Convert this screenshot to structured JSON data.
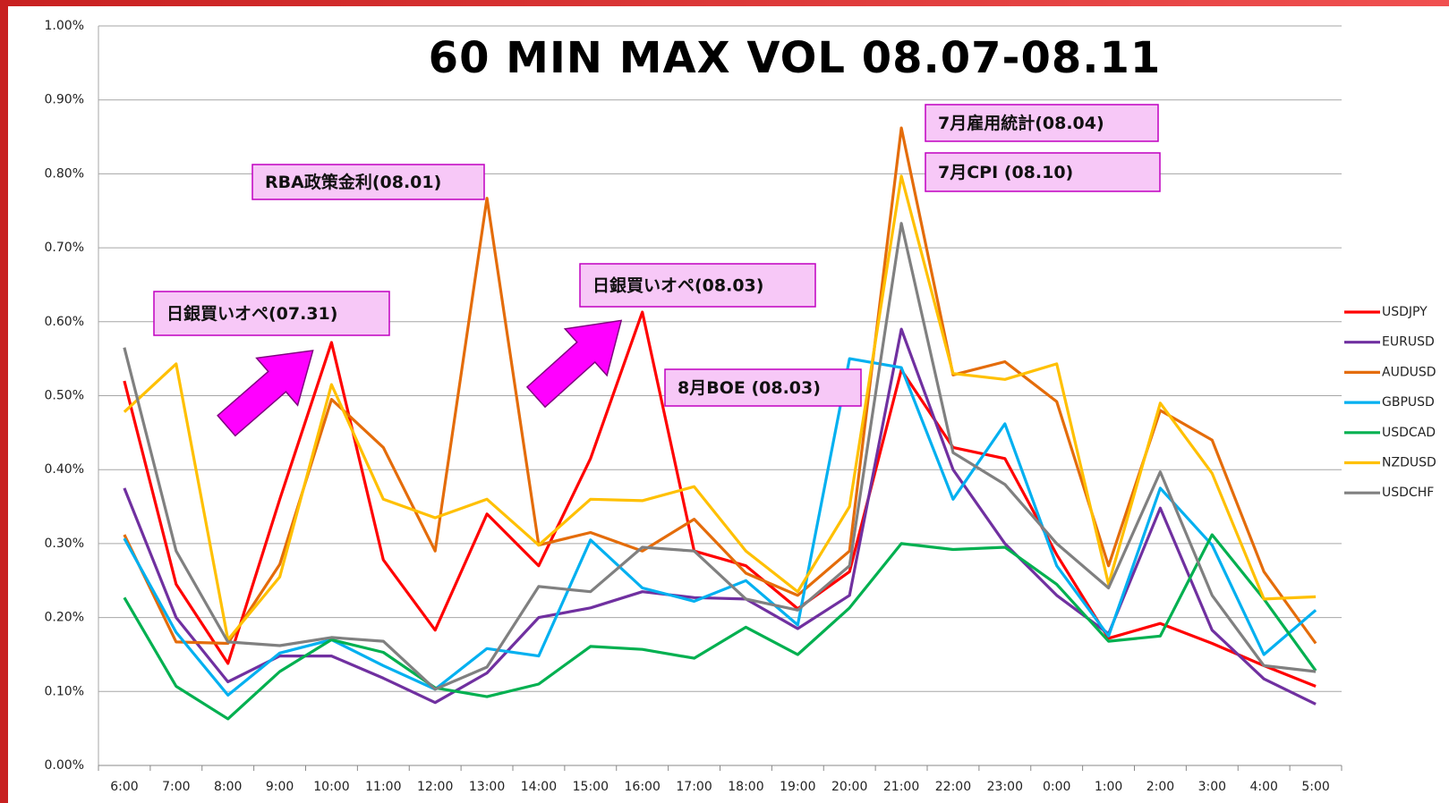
{
  "chart_data": {
    "type": "line",
    "title": "60 MIN MAX VOL 08.07-08.11",
    "categories": [
      "6:00",
      "7:00",
      "8:00",
      "9:00",
      "10:00",
      "11:00",
      "12:00",
      "13:00",
      "14:00",
      "15:00",
      "16:00",
      "17:00",
      "18:00",
      "19:00",
      "20:00",
      "21:00",
      "22:00",
      "23:00",
      "0:00",
      "1:00",
      "2:00",
      "3:00",
      "4:00",
      "5:00"
    ],
    "series": [
      {
        "name": "USDJPY",
        "color": "#ff0000",
        "values": [
          0.52,
          0.245,
          0.138,
          0.36,
          0.572,
          0.278,
          0.183,
          0.34,
          0.27,
          0.415,
          0.613,
          0.29,
          0.27,
          0.212,
          0.262,
          0.535,
          0.43,
          0.415,
          0.285,
          0.172,
          0.192,
          0.165,
          0.135,
          0.107
        ]
      },
      {
        "name": "EURUSD",
        "color": "#7030a0",
        "values": [
          0.375,
          0.2,
          0.113,
          0.148,
          0.148,
          0.118,
          0.085,
          0.125,
          0.2,
          0.213,
          0.235,
          0.227,
          0.225,
          0.185,
          0.23,
          0.59,
          0.4,
          0.3,
          0.23,
          0.178,
          0.348,
          0.183,
          0.117,
          0.083
        ]
      },
      {
        "name": "AUDUSD",
        "color": "#e46c0a",
        "values": [
          0.312,
          0.167,
          0.165,
          0.272,
          0.495,
          0.43,
          0.29,
          0.767,
          0.298,
          0.315,
          0.29,
          0.333,
          0.26,
          0.23,
          0.29,
          0.862,
          0.528,
          0.546,
          0.492,
          0.27,
          0.48,
          0.44,
          0.262,
          0.165
        ]
      },
      {
        "name": "GBPUSD",
        "color": "#00b0f0",
        "values": [
          0.307,
          0.18,
          0.095,
          0.152,
          0.17,
          0.135,
          0.103,
          0.158,
          0.148,
          0.305,
          0.24,
          0.222,
          0.25,
          0.19,
          0.55,
          0.538,
          0.36,
          0.462,
          0.27,
          0.175,
          0.375,
          0.298,
          0.15,
          0.21
        ]
      },
      {
        "name": "USDCAD",
        "color": "#00b050",
        "values": [
          0.227,
          0.107,
          0.063,
          0.127,
          0.17,
          0.153,
          0.105,
          0.093,
          0.11,
          0.161,
          0.157,
          0.145,
          0.187,
          0.15,
          0.213,
          0.3,
          0.292,
          0.295,
          0.245,
          0.168,
          0.175,
          0.312,
          0.225,
          0.128
        ]
      },
      {
        "name": "NZDUSD",
        "color": "#ffc000",
        "values": [
          0.478,
          0.543,
          0.17,
          0.255,
          0.515,
          0.36,
          0.335,
          0.36,
          0.298,
          0.36,
          0.358,
          0.377,
          0.29,
          0.235,
          0.35,
          0.797,
          0.53,
          0.522,
          0.543,
          0.245,
          0.49,
          0.395,
          0.225,
          0.228
        ]
      },
      {
        "name": "USDCHF",
        "color": "#808080",
        "values": [
          0.565,
          0.29,
          0.167,
          0.162,
          0.173,
          0.168,
          0.103,
          0.133,
          0.242,
          0.235,
          0.295,
          0.29,
          0.225,
          0.21,
          0.27,
          0.733,
          0.423,
          0.38,
          0.3,
          0.24,
          0.397,
          0.23,
          0.135,
          0.127
        ]
      }
    ],
    "ylim": [
      0,
      1
    ],
    "yticks": [
      {
        "value": 0,
        "label": "0.00%"
      },
      {
        "value": 0.1,
        "label": "0.10%"
      },
      {
        "value": 0.2,
        "label": "0.20%"
      },
      {
        "value": 0.3,
        "label": "0.30%"
      },
      {
        "value": 0.4,
        "label": "0.40%"
      },
      {
        "value": 0.5,
        "label": "0.50%"
      },
      {
        "value": 0.6,
        "label": "0.60%"
      },
      {
        "value": 0.7,
        "label": "0.70%"
      },
      {
        "value": 0.8,
        "label": "0.80%"
      },
      {
        "value": 0.9,
        "label": "0.90%"
      },
      {
        "value": 1,
        "label": "1.00%"
      }
    ],
    "grid": true,
    "legend": "right",
    "annotations": [
      "RBA政策金利(08.01)",
      "日銀買いオペ(07.31)",
      "日銀買いオペ(08.03)",
      "8月BOE (08.03)",
      "7月雇用統計(08.04)",
      "7月CPI (08.10)"
    ]
  }
}
